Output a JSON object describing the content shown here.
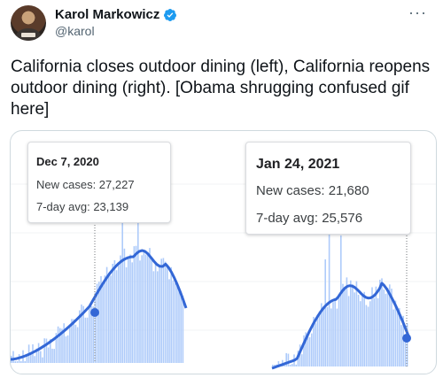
{
  "tweet": {
    "author_name": "Karol Markowicz",
    "handle": "@karol",
    "more_label": "···",
    "text": "California closes outdoor dining (left), California reopens outdoor dining (right). [Obama shrugging confused gif here]"
  },
  "colors": {
    "bar": "#aecbfa",
    "line": "#3367d6",
    "verified": "#1d9bf0"
  },
  "icons": {
    "verified": "verified-badge-icon",
    "more": "more-icon"
  },
  "left_chart": {
    "tooltip": {
      "date": "Dec 7, 2020",
      "new_cases": "New cases: 27,227",
      "avg": "7-day avg: 23,139"
    }
  },
  "right_chart": {
    "tooltip": {
      "date": "Jan 24, 2021",
      "new_cases": "New cases: 21,680",
      "avg": "7-day avg: 25,576"
    }
  }
}
